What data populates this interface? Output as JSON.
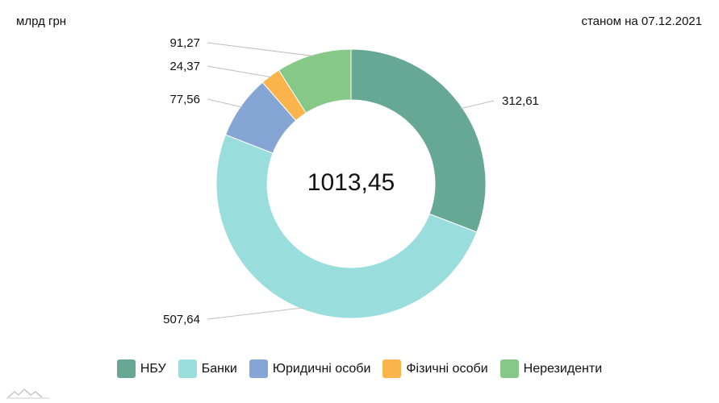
{
  "header": {
    "unit_label": "млрд грн",
    "date_label": "станом на 07.12.2021"
  },
  "chart_data": {
    "type": "pie",
    "donut": true,
    "center_label": "1013,45",
    "categories": [
      "НБУ",
      "Банки",
      "Юридичні особи",
      "Фізичні особи",
      "Нерезиденти"
    ],
    "values": [
      312.61,
      507.64,
      77.56,
      24.37,
      91.27
    ],
    "value_labels": [
      "312,61",
      "507,64",
      "77,56",
      "24,37",
      "91,27"
    ],
    "colors": [
      "#67a894",
      "#99dedc",
      "#85a5d4",
      "#fbb34c",
      "#85c887"
    ],
    "legend_position": "bottom"
  }
}
